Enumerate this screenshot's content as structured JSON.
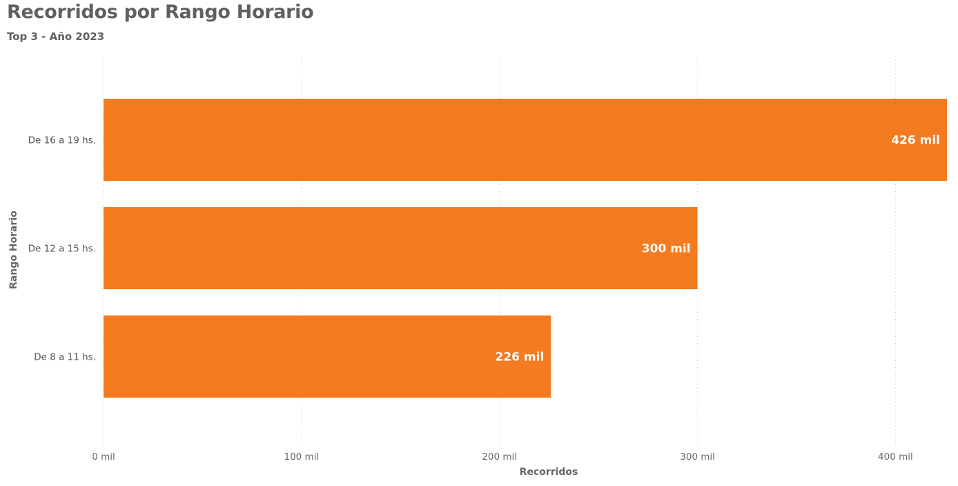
{
  "chart_data": {
    "type": "bar",
    "orientation": "horizontal",
    "title": "Recorridos por Rango Horario",
    "subtitle": "Top 3 - Año 2023",
    "xlabel": "Recorridos",
    "ylabel": "Rango Horario",
    "categories": [
      "De 16 a 19 hs.",
      "De 12 a 15 hs.",
      "De 8 a 11 hs."
    ],
    "values": [
      426,
      300,
      226
    ],
    "value_labels": [
      "426 mil",
      "300 mil",
      "226 mil"
    ],
    "x_ticks": [
      0,
      100,
      200,
      300,
      400
    ],
    "x_tick_labels": [
      "0 mil",
      "100 mil",
      "200 mil",
      "300 mil",
      "400 mil"
    ],
    "xlim": [
      0,
      426
    ],
    "grid": "vertical-dotted",
    "legend": "none",
    "bar_color": "#f47b20"
  }
}
